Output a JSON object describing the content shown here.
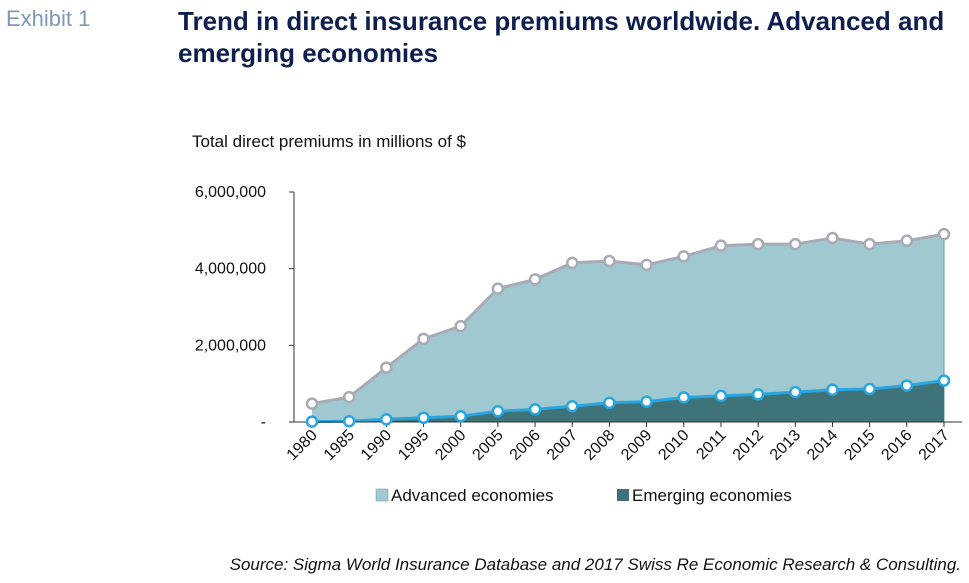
{
  "exhibit_label": "Exhibit 1",
  "title": "Trend in direct insurance premiums worldwide. Advanced and emerging economies",
  "source": "Source: Sigma World Insurance Database and 2017 Swiss Re Economic Research & Consulting.",
  "colors": {
    "advanced_fill": "#9fc8d0",
    "advanced_line": "#a8abb5",
    "emerging_fill": "#3e7379",
    "emerging_line": "#29a6e0",
    "axis": "#333333"
  },
  "chart_data": {
    "type": "area",
    "ylabel": "Total direct premiums in millions of $",
    "x": [
      "1980",
      "1985",
      "1990",
      "1995",
      "2000",
      "2005",
      "2006",
      "2007",
      "2008",
      "2009",
      "2010",
      "2011",
      "2012",
      "2013",
      "2014",
      "2015",
      "2016",
      "2017"
    ],
    "series": [
      {
        "name": "Advanced economies",
        "values": [
          480000,
          650000,
          1420000,
          2170000,
          2500000,
          3480000,
          3720000,
          4150000,
          4200000,
          4100000,
          4320000,
          4600000,
          4640000,
          4640000,
          4800000,
          4640000,
          4730000,
          4900000
        ]
      },
      {
        "name": "Emerging economies",
        "values": [
          10000,
          20000,
          70000,
          110000,
          150000,
          280000,
          330000,
          410000,
          500000,
          530000,
          640000,
          680000,
          720000,
          780000,
          840000,
          860000,
          950000,
          1080000
        ]
      }
    ],
    "ylim": [
      0,
      6000000
    ],
    "yticks": [
      {
        "value": 6000000,
        "label": "6,000,000"
      },
      {
        "value": 4000000,
        "label": "4,000,000"
      },
      {
        "value": 2000000,
        "label": "2,000,000"
      },
      {
        "value": 0,
        "label": "-"
      }
    ],
    "legend_position": "bottom",
    "grid": false
  }
}
